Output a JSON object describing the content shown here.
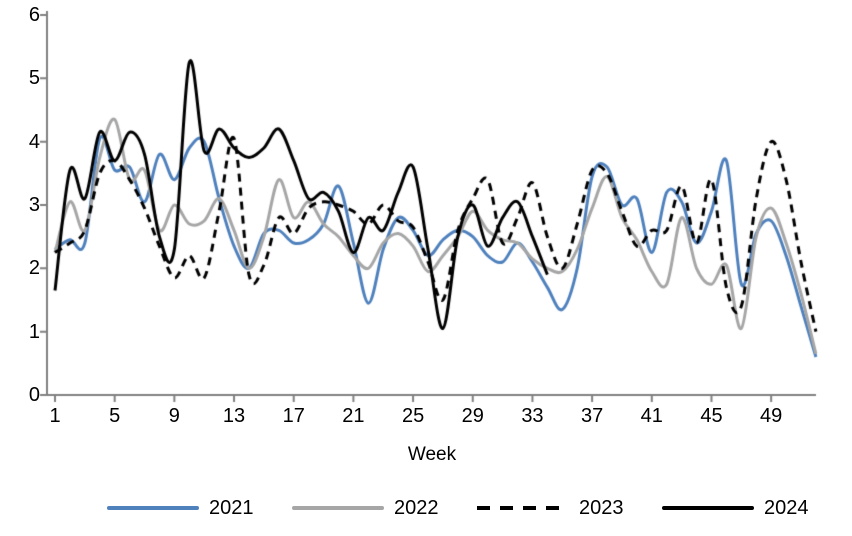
{
  "chart": {
    "xlabel": "Week",
    "x_tick_labels": [
      1,
      5,
      9,
      13,
      17,
      21,
      25,
      29,
      33,
      37,
      41,
      45,
      49
    ],
    "y_tick_labels": [
      0,
      1,
      2,
      3,
      4,
      5,
      6
    ],
    "axis_color": "#808080",
    "text_color": "#000000",
    "background_color": "#ffffff"
  },
  "chart_data": {
    "type": "line",
    "title": "",
    "xlabel": "Week",
    "ylabel": "",
    "x_unit": "week",
    "x": [
      1,
      2,
      3,
      4,
      5,
      6,
      7,
      8,
      9,
      10,
      11,
      12,
      13,
      14,
      15,
      16,
      17,
      18,
      19,
      20,
      21,
      22,
      23,
      24,
      25,
      26,
      27,
      28,
      29,
      30,
      31,
      32,
      33,
      34,
      35,
      36,
      37,
      38,
      39,
      40,
      41,
      42,
      43,
      44,
      45,
      46,
      47,
      48,
      49,
      50,
      51,
      52
    ],
    "xlim": [
      1,
      52
    ],
    "ylim": [
      0,
      6
    ],
    "x_ticks": [
      1,
      5,
      9,
      13,
      17,
      21,
      25,
      29,
      33,
      37,
      41,
      45,
      49
    ],
    "y_ticks": [
      0,
      1,
      2,
      3,
      4,
      5,
      6
    ],
    "grid": false,
    "line_style": "smooth",
    "legend_position": "bottom",
    "series": [
      {
        "name": "2021",
        "color": "#4F81BD",
        "style": "solid",
        "values": [
          2.3,
          2.45,
          2.4,
          4.05,
          3.55,
          3.6,
          3.05,
          3.8,
          3.4,
          3.9,
          4.0,
          3.1,
          2.35,
          2.0,
          2.55,
          2.6,
          2.4,
          2.45,
          2.7,
          3.3,
          2.4,
          1.45,
          2.3,
          2.8,
          2.6,
          2.2,
          2.45,
          2.6,
          2.5,
          2.2,
          2.1,
          2.4,
          2.1,
          1.7,
          1.35,
          2.0,
          3.45,
          3.6,
          3.0,
          3.1,
          2.25,
          3.2,
          3.05,
          2.4,
          2.9,
          3.7,
          1.75,
          2.55,
          2.75,
          2.2,
          1.4,
          0.6
        ]
      },
      {
        "name": "2022",
        "color": "#A6A6A6",
        "style": "solid",
        "values": [
          2.25,
          3.05,
          2.6,
          3.75,
          4.35,
          3.4,
          3.55,
          2.6,
          3.0,
          2.7,
          2.75,
          3.1,
          2.6,
          2.0,
          2.5,
          3.4,
          2.8,
          3.05,
          2.7,
          2.5,
          2.2,
          2.0,
          2.4,
          2.55,
          2.35,
          1.95,
          2.2,
          2.5,
          2.9,
          2.6,
          2.45,
          2.4,
          2.15,
          2.0,
          1.95,
          2.3,
          2.95,
          3.45,
          2.8,
          2.45,
          1.95,
          1.75,
          2.8,
          2.0,
          1.75,
          2.05,
          1.05,
          2.5,
          2.95,
          2.4,
          1.6,
          0.65
        ]
      },
      {
        "name": "2023",
        "color": "#000000",
        "style": "dashed",
        "values": [
          2.25,
          2.4,
          2.6,
          3.5,
          3.7,
          3.4,
          2.95,
          2.35,
          1.85,
          2.2,
          1.85,
          2.9,
          4.05,
          1.9,
          2.05,
          2.8,
          2.55,
          2.95,
          3.05,
          3.0,
          2.9,
          2.7,
          3.0,
          2.75,
          2.65,
          2.1,
          1.5,
          2.6,
          3.1,
          3.4,
          2.4,
          2.8,
          3.35,
          2.5,
          2.0,
          2.7,
          3.55,
          3.5,
          2.9,
          2.35,
          2.6,
          2.6,
          3.3,
          2.4,
          3.4,
          1.7,
          1.4,
          3.1,
          4.0,
          3.4,
          2.1,
          1.0
        ]
      },
      {
        "name": "2024",
        "color": "#000000",
        "style": "solid",
        "values": [
          1.65,
          3.55,
          3.1,
          4.15,
          3.7,
          4.15,
          3.8,
          2.5,
          2.3,
          5.25,
          3.85,
          4.2,
          3.9,
          3.75,
          3.9,
          4.2,
          3.7,
          3.1,
          3.2,
          2.9,
          2.25,
          2.8,
          2.6,
          3.2,
          3.6,
          2.3,
          1.05,
          2.5,
          3.0,
          2.35,
          2.8,
          3.05,
          2.5,
          1.9
        ]
      }
    ]
  }
}
